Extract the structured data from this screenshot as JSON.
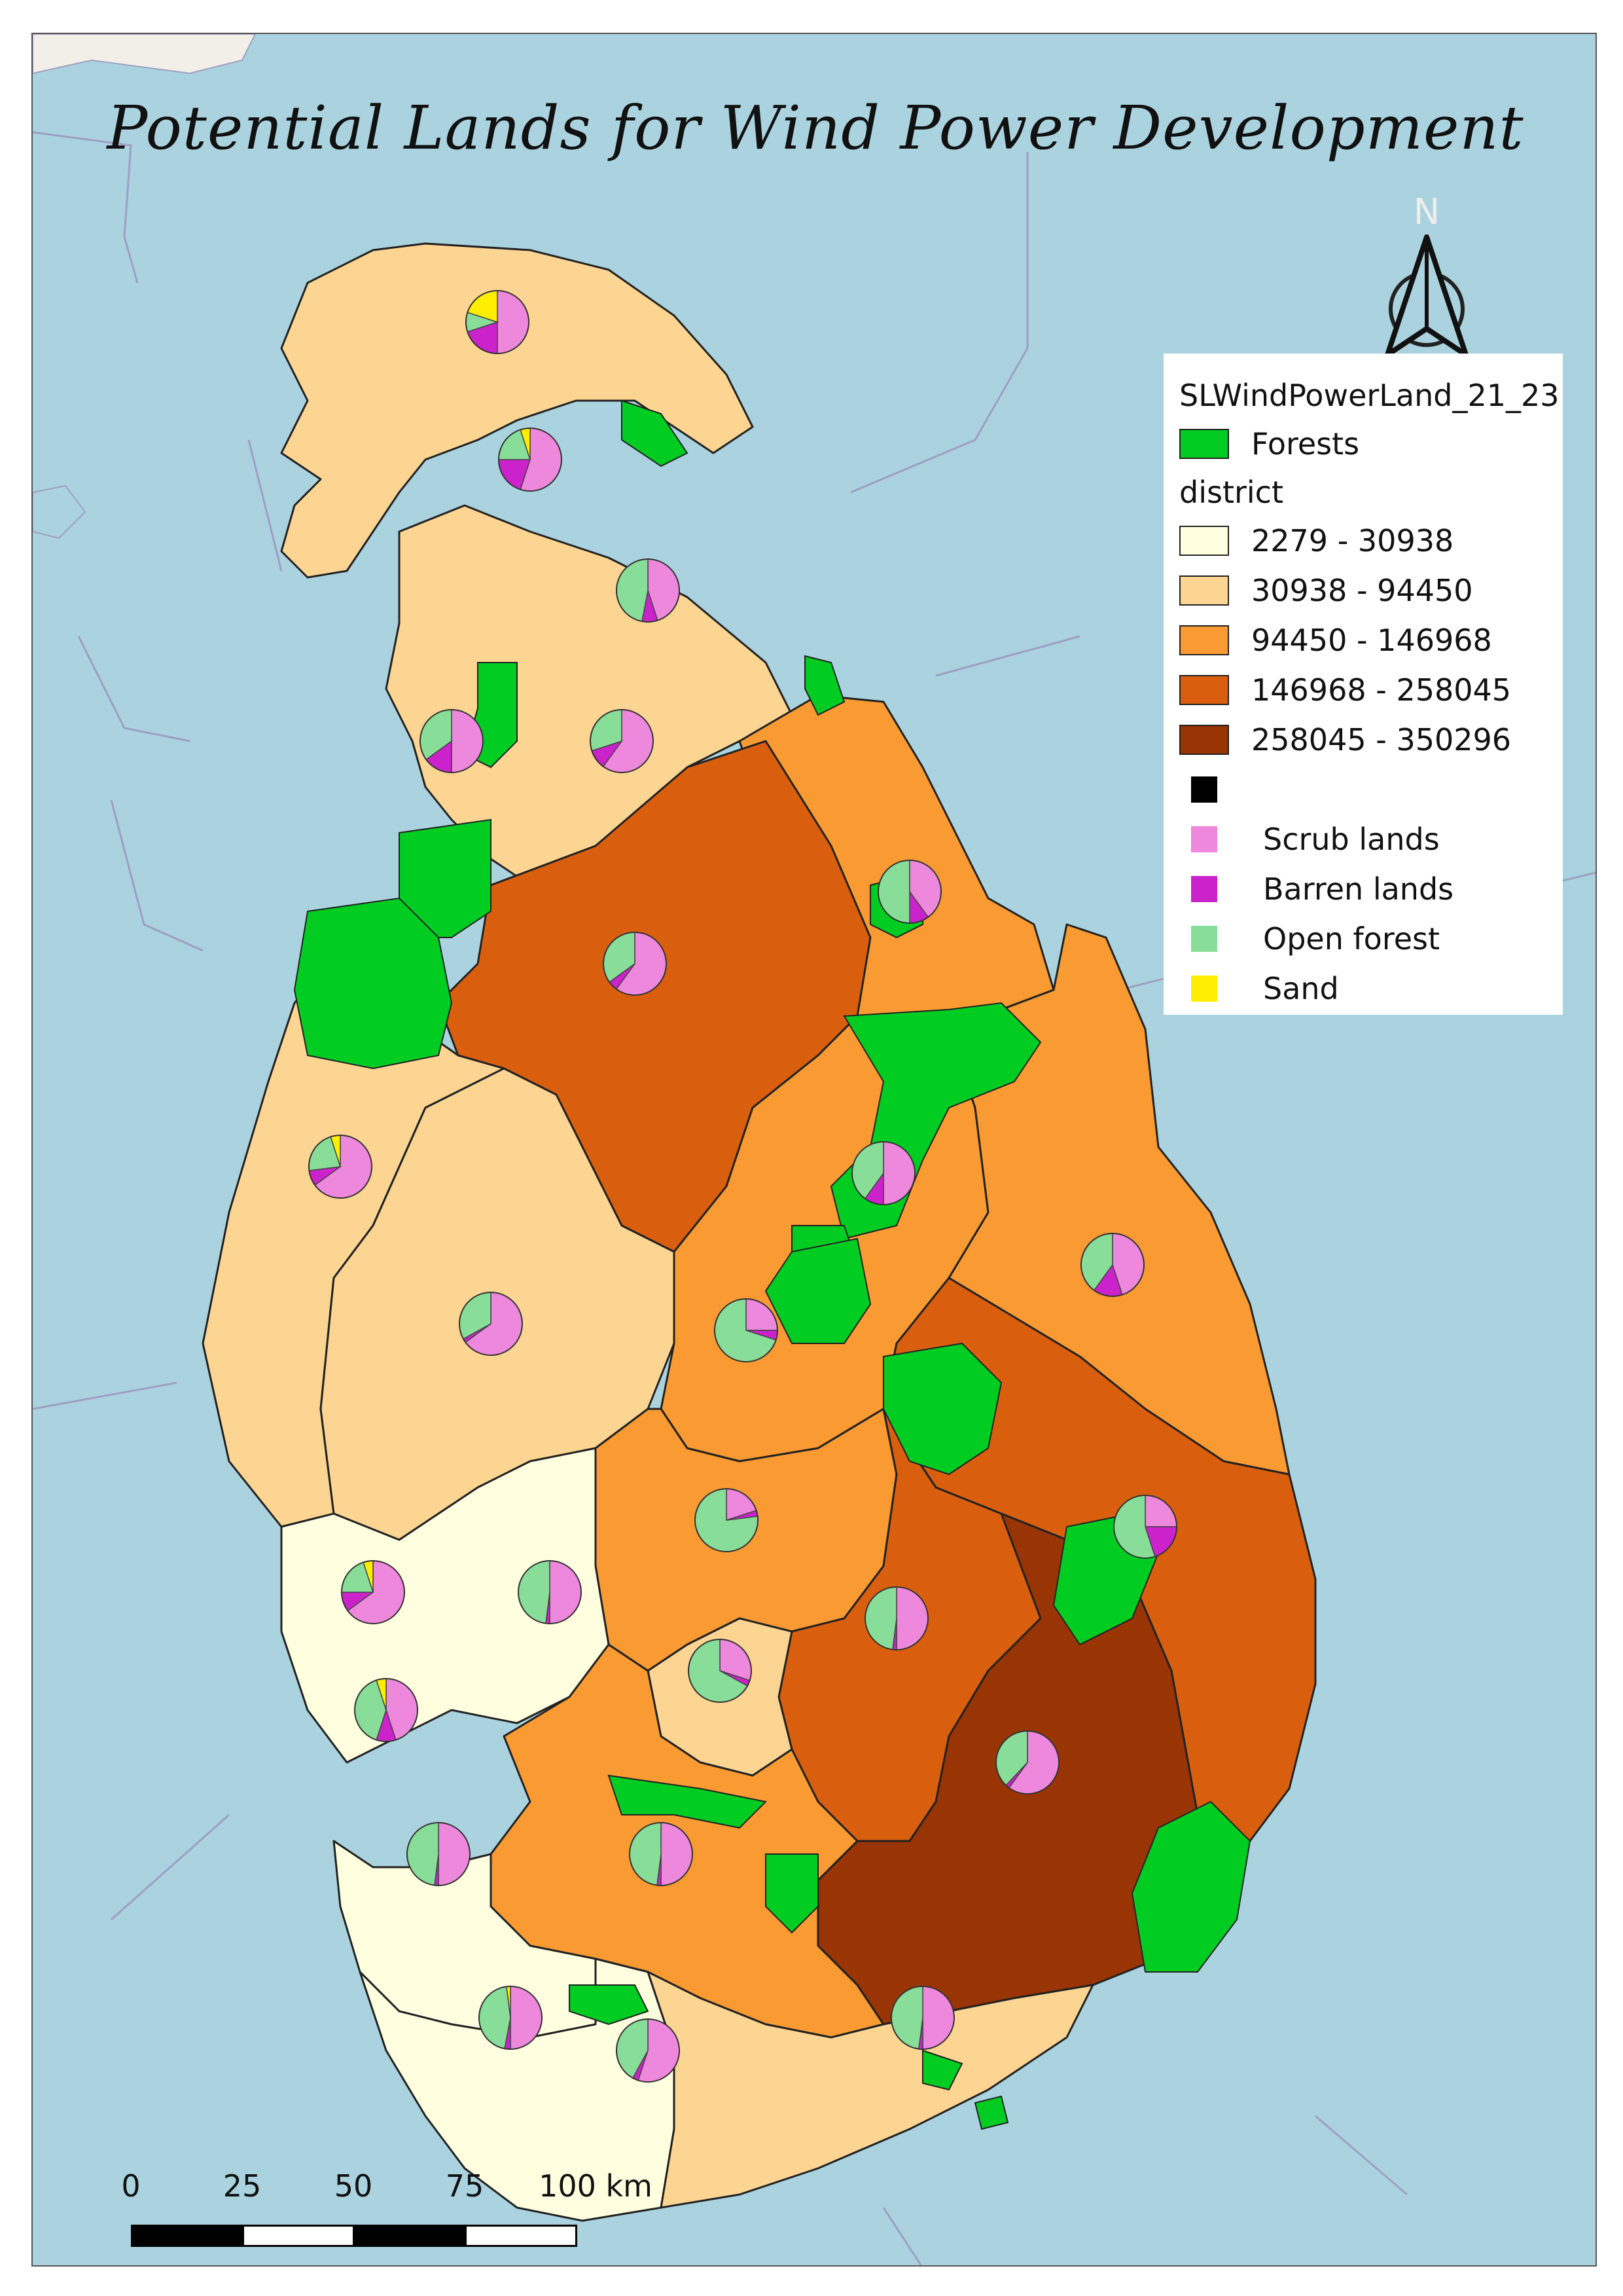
{
  "title": "Potential Lands for Wind Power Development",
  "north": "N",
  "legend": {
    "layer": "SLWindPowerLand_21_23",
    "forests_label": "Forests",
    "district_heading": "district",
    "classes": [
      {
        "label": "2279 - 30938",
        "color": "#ffffe0"
      },
      {
        "label": "30938 - 94450",
        "color": "#fdd593"
      },
      {
        "label": "94450 - 146968",
        "color": "#f99a33"
      },
      {
        "label": "146968 - 258045",
        "color": "#d95f0e"
      },
      {
        "label": "258045 - 350296",
        "color": "#993404"
      }
    ],
    "black_label": "",
    "categories": [
      {
        "label": "Scrub lands",
        "color": "#ee88dd"
      },
      {
        "label": "Barren lands",
        "color": "#cc22cc"
      },
      {
        "label": "Open forest",
        "color": "#88dd99"
      },
      {
        "label": "Sand",
        "color": "#ffee00"
      }
    ]
  },
  "colors": {
    "sea": "#aad3df",
    "forest": "#00cc22",
    "black": "#000000"
  },
  "scale": {
    "labels": [
      "0",
      "25",
      "50",
      "75",
      "100 km"
    ]
  },
  "chart_data": {
    "type": "pie",
    "note_categories": [
      "Scrub lands",
      "Barren lands",
      "Open forest",
      "Sand"
    ],
    "pies": [
      {
        "values": [
          0.5,
          0.2,
          0.1,
          0.2
        ]
      },
      {
        "values": [
          0.55,
          0.2,
          0.2,
          0.05
        ]
      },
      {
        "values": [
          0.45,
          0.08,
          0.47,
          0.0
        ]
      },
      {
        "values": [
          0.5,
          0.15,
          0.35,
          0.0
        ]
      },
      {
        "values": [
          0.6,
          0.1,
          0.3,
          0.0
        ]
      },
      {
        "values": [
          0.4,
          0.1,
          0.5,
          0.0
        ]
      },
      {
        "values": [
          0.6,
          0.05,
          0.35,
          0.0
        ]
      },
      {
        "values": [
          0.65,
          0.08,
          0.22,
          0.05
        ]
      },
      {
        "values": [
          0.5,
          0.1,
          0.4,
          0.0
        ]
      },
      {
        "values": [
          0.45,
          0.15,
          0.4,
          0.0
        ]
      },
      {
        "values": [
          0.65,
          0.02,
          0.33,
          0.0
        ]
      },
      {
        "values": [
          0.25,
          0.05,
          0.7,
          0.0
        ]
      },
      {
        "values": [
          0.2,
          0.03,
          0.77,
          0.0
        ]
      },
      {
        "values": [
          0.5,
          0.02,
          0.48,
          0.0
        ]
      },
      {
        "values": [
          0.25,
          0.2,
          0.55,
          0.0
        ]
      },
      {
        "values": [
          0.65,
          0.1,
          0.2,
          0.05
        ]
      },
      {
        "values": [
          0.5,
          0.02,
          0.48,
          0.0
        ]
      },
      {
        "values": [
          0.3,
          0.03,
          0.67,
          0.0
        ]
      },
      {
        "values": [
          0.45,
          0.1,
          0.4,
          0.05
        ]
      },
      {
        "values": [
          0.5,
          0.02,
          0.48,
          0.0
        ]
      },
      {
        "values": [
          0.5,
          0.02,
          0.48,
          0.0
        ]
      },
      {
        "values": [
          0.6,
          0.02,
          0.38,
          0.0
        ]
      },
      {
        "values": [
          0.5,
          0.03,
          0.45,
          0.02
        ]
      },
      {
        "values": [
          0.55,
          0.03,
          0.42,
          0.0
        ]
      },
      {
        "values": [
          0.5,
          0.02,
          0.48,
          0.0
        ]
      }
    ]
  }
}
